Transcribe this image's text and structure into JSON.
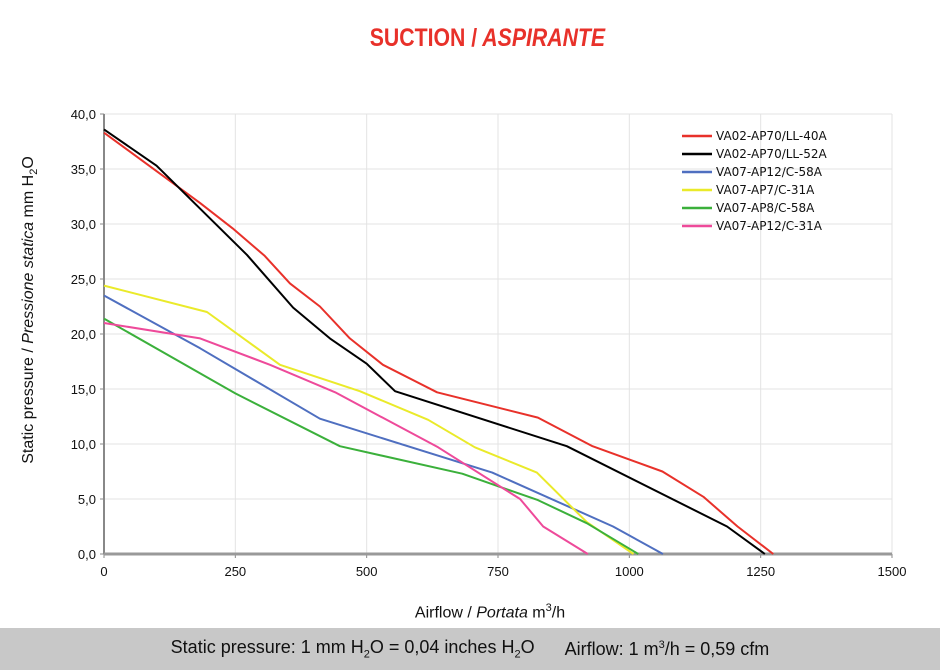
{
  "title": {
    "main": "SUCTION /",
    "italic": " ASPIRANTE",
    "color": "#e8312a"
  },
  "footer": {
    "pressure": {
      "a": "Static pressure: 1 mm H",
      "sub1": "2",
      "b": "O = 0,04 inches H",
      "sub2": "2",
      "c": "O"
    },
    "airflow": {
      "a": "Airflow: 1 m",
      "sup": "3",
      "b": "/h = 0,59 cfm"
    }
  },
  "chart_data": {
    "type": "line",
    "title": "SUCTION / ASPIRANTE",
    "xlabel": "Airflow / Portata m3/h",
    "ylabel": "Static pressure / Pressione statica mm H2O",
    "xlabel_parts": {
      "a": "Airflow /",
      "italic": " Portata",
      "b": " m",
      "sup": "3",
      "c": "/h"
    },
    "ylabel_parts": {
      "a": "Static pressure /",
      "italic": " Pressione statica",
      "b": " mm  H",
      "sub": "2",
      "c": "O"
    },
    "xlim": [
      0,
      1500
    ],
    "ylim": [
      0,
      40
    ],
    "xticks": [
      "0",
      "250",
      "500",
      "750",
      "1000",
      "1250",
      "1500"
    ],
    "yticks": [
      "0,0",
      "5,0",
      "10,0",
      "15,0",
      "20,0",
      "25,0",
      "30,0",
      "35,0",
      "40,0"
    ],
    "grid": true,
    "legend_position": "top-right",
    "series": [
      {
        "name": "VA02-AP70/LL-40A",
        "color": "#e8312a",
        "points": [
          [
            0,
            38.3
          ],
          [
            183,
            31.9
          ],
          [
            245,
            29.6
          ],
          [
            306,
            27.1
          ],
          [
            354,
            24.6
          ],
          [
            411,
            22.5
          ],
          [
            468,
            19.6
          ],
          [
            531,
            17.2
          ],
          [
            634,
            14.7
          ],
          [
            826,
            12.4
          ],
          [
            930,
            9.8
          ],
          [
            1063,
            7.5
          ],
          [
            1141,
            5.2
          ],
          [
            1206,
            2.5
          ],
          [
            1274,
            0
          ]
        ]
      },
      {
        "name": "VA02-AP70/LL-52A",
        "color": "#000000",
        "points": [
          [
            0,
            38.6
          ],
          [
            100,
            35.3
          ],
          [
            272,
            27.2
          ],
          [
            360,
            22.4
          ],
          [
            430,
            19.6
          ],
          [
            500,
            17.3
          ],
          [
            554,
            14.8
          ],
          [
            881,
            9.8
          ],
          [
            1186,
            2.5
          ],
          [
            1258,
            0
          ]
        ]
      },
      {
        "name": "VA07-AP12/C-58A",
        "color": "#4f6fc0",
        "points": [
          [
            0,
            23.5
          ],
          [
            183,
            18.7
          ],
          [
            411,
            12.3
          ],
          [
            739,
            7.4
          ],
          [
            969,
            2.5
          ],
          [
            1064,
            0
          ]
        ]
      },
      {
        "name": "VA07-AP7/C-31A",
        "color": "#eaea2a",
        "points": [
          [
            0,
            24.4
          ],
          [
            196,
            22.0
          ],
          [
            335,
            17.2
          ],
          [
            487,
            14.8
          ],
          [
            617,
            12.2
          ],
          [
            706,
            9.7
          ],
          [
            824,
            7.4
          ],
          [
            919,
            2.9
          ],
          [
            1008,
            0
          ]
        ]
      },
      {
        "name": "VA07-AP8/C-58A",
        "color": "#3bb03b",
        "points": [
          [
            0,
            21.4
          ],
          [
            250,
            14.6
          ],
          [
            449,
            9.8
          ],
          [
            682,
            7.3
          ],
          [
            826,
            4.9
          ],
          [
            919,
            2.8
          ],
          [
            1017,
            0
          ]
        ]
      },
      {
        "name": "VA07-AP12/C-31A",
        "color": "#ee4a9a",
        "points": [
          [
            0,
            21.0
          ],
          [
            183,
            19.6
          ],
          [
            316,
            17.2
          ],
          [
            440,
            14.7
          ],
          [
            636,
            9.7
          ],
          [
            792,
            5.0
          ],
          [
            836,
            2.5
          ],
          [
            921,
            0
          ]
        ]
      }
    ]
  }
}
